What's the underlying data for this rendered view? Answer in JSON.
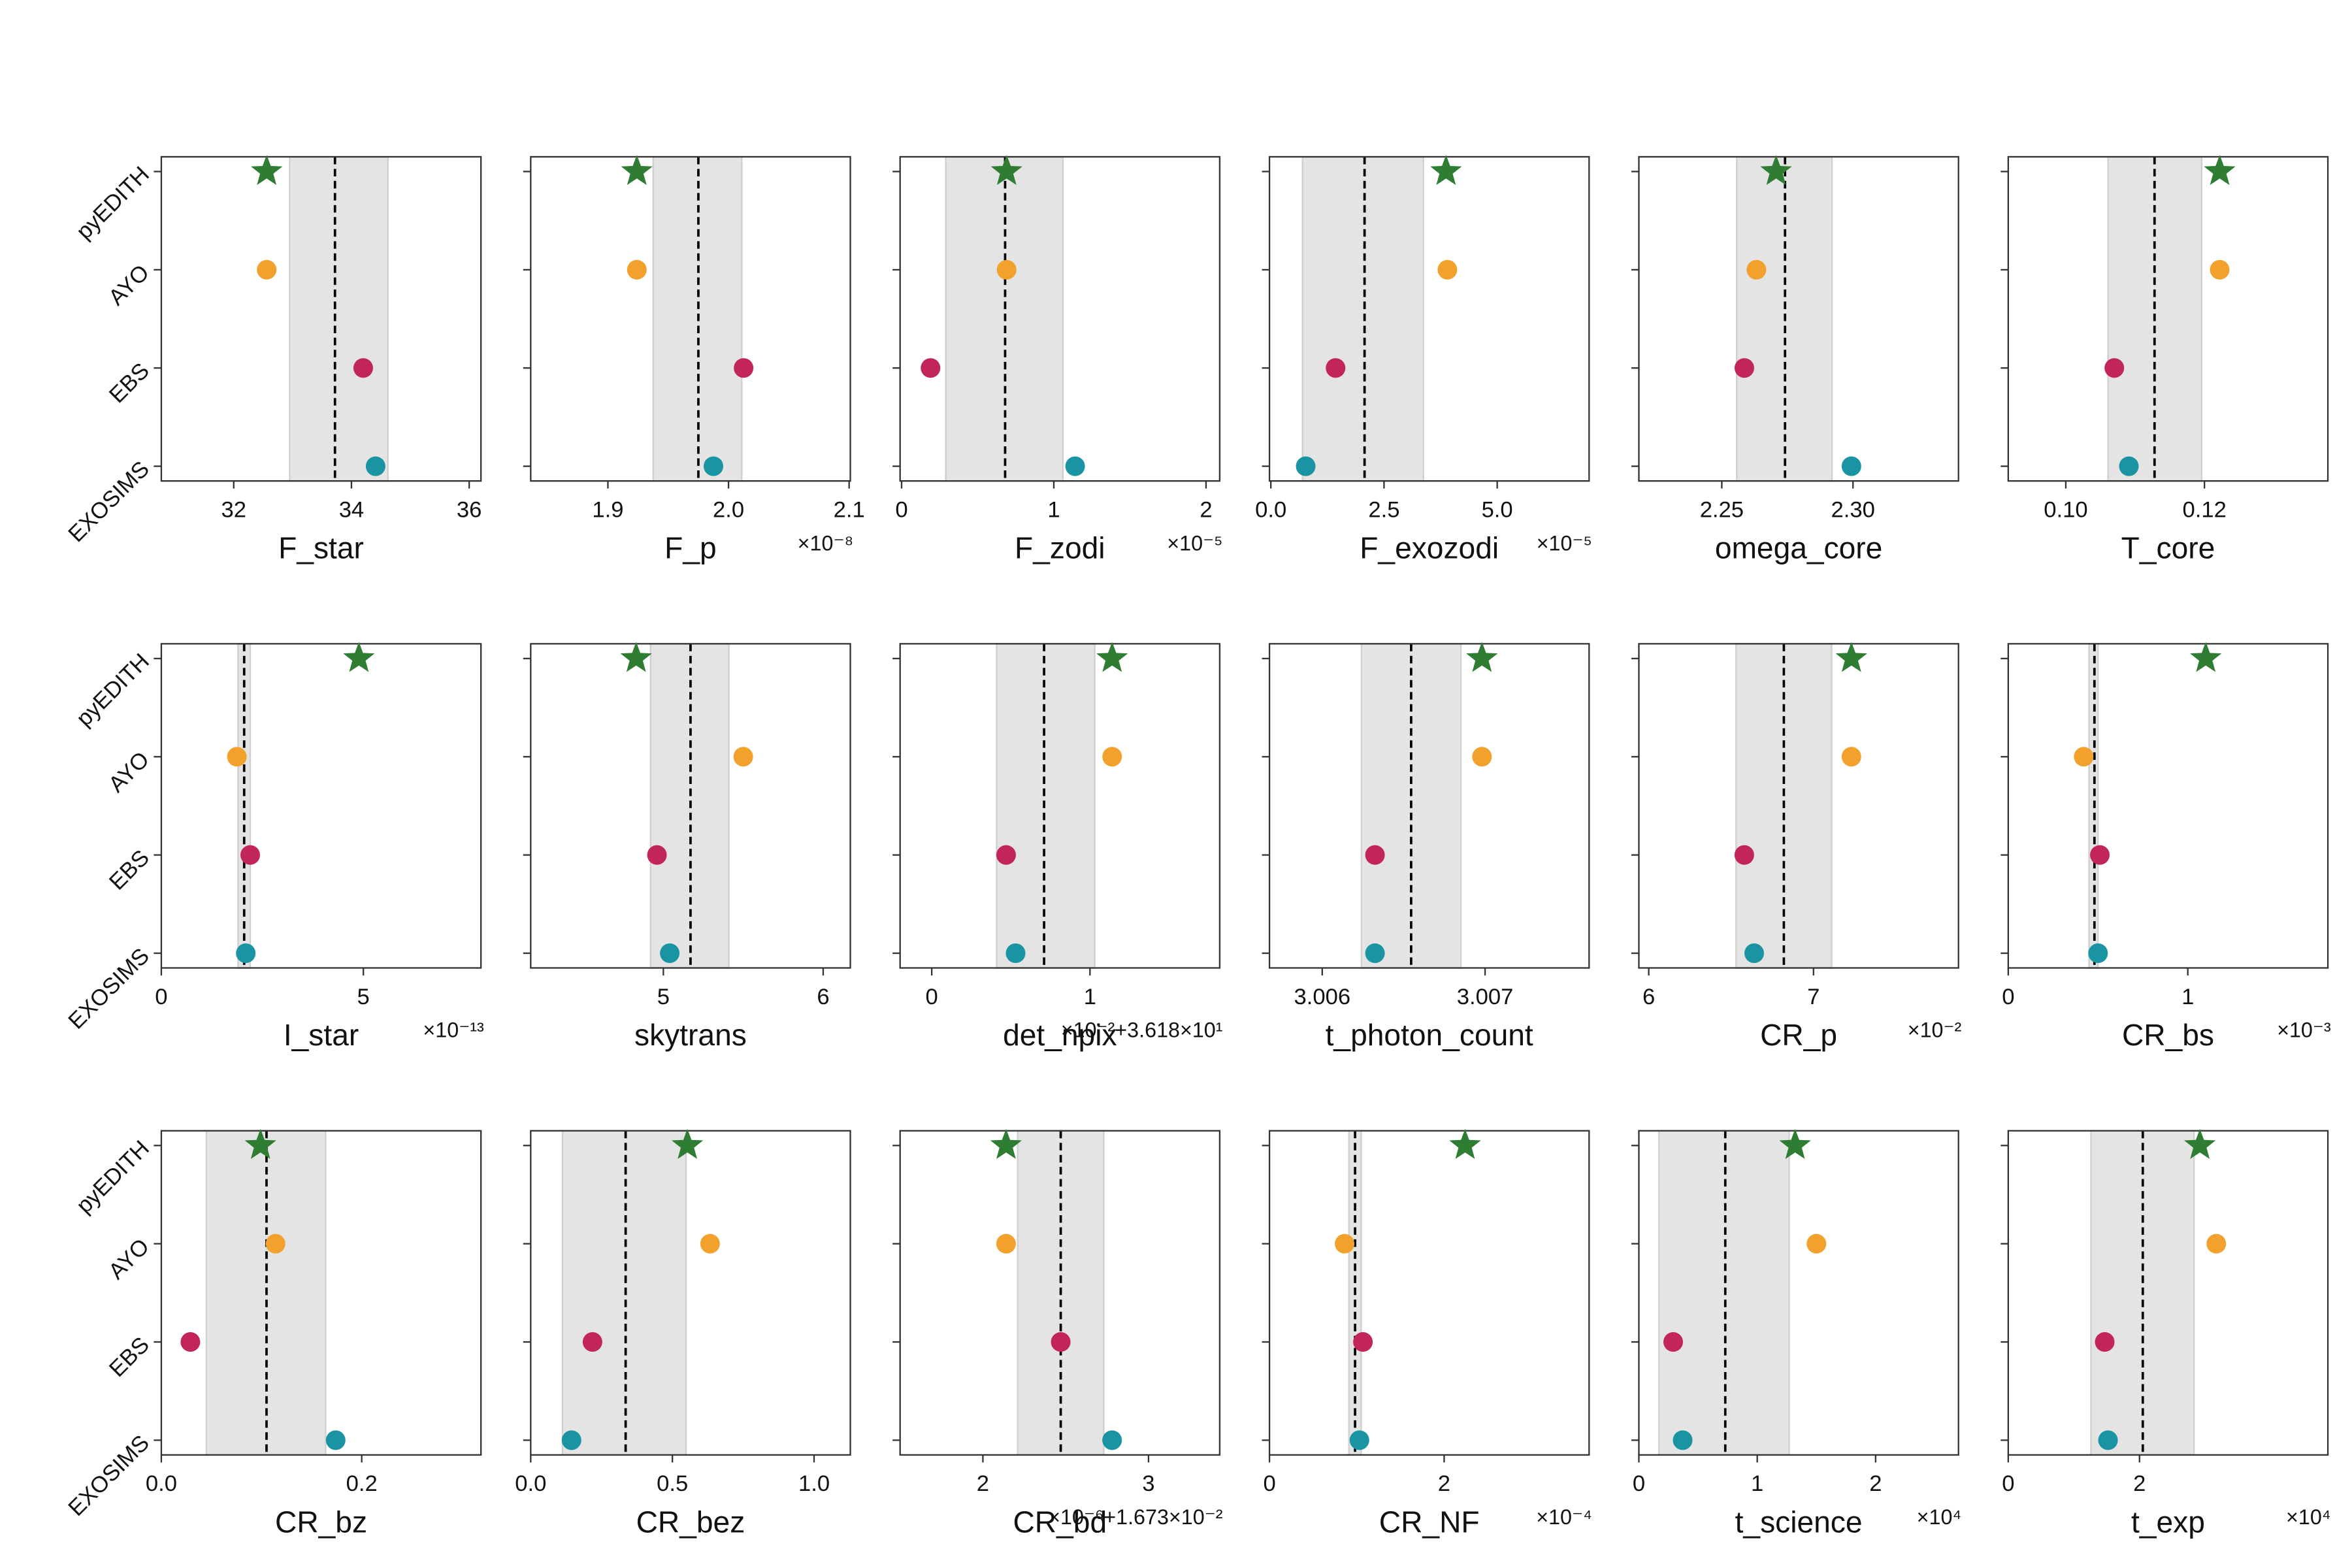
{
  "categories": [
    "EXOSIMS",
    "EBS",
    "AYO",
    "pyEDITH"
  ],
  "colors": [
    "#1a93a3",
    "#c2255c",
    "#f2a22c",
    "#2e7d32"
  ],
  "ylim": [
    -0.15,
    3.15
  ],
  "chart_data": [
    {
      "type": "dot",
      "xlabel": "F_star",
      "values": [
        34.41,
        34.2,
        32.56,
        32.56
      ],
      "mean": 33.72,
      "band": [
        32.95,
        34.62
      ],
      "xlim": [
        30.77,
        36.2
      ],
      "xticks": [
        32,
        34,
        36
      ]
    },
    {
      "type": "dot",
      "xlabel": "F_p",
      "values": [
        1.9875,
        2.0125,
        1.924,
        1.924
      ],
      "mean": 1.975,
      "band": [
        1.9375,
        2.011
      ],
      "xlim": [
        1.836,
        2.101
      ],
      "xticks": [
        1.9,
        {
          "value": 2,
          "label": "2.0"
        },
        2.1
      ],
      "offset": "×10⁻⁸"
    },
    {
      "type": "dot",
      "xlabel": "F_zodi",
      "values": [
        1.14,
        0.19,
        0.69,
        0.69
      ],
      "mean": 0.68,
      "band": [
        0.29,
        1.06
      ],
      "xlim": [
        -0.01,
        2.09
      ],
      "xticks": [
        0,
        1,
        2
      ],
      "offset": "×10⁻⁵"
    },
    {
      "type": "dot",
      "xlabel": "F_exozodi",
      "values": [
        0.77,
        1.43,
        3.9,
        3.87
      ],
      "mean": 2.07,
      "band": [
        0.7,
        3.37
      ],
      "xlim": [
        -0.03,
        7.03
      ],
      "xticks": [
        {
          "value": 0,
          "label": "0.0"
        },
        2.5,
        {
          "value": 5,
          "label": "5.0"
        }
      ],
      "offset": "×10⁻⁵"
    },
    {
      "type": "dot",
      "xlabel": "omega_core",
      "values": [
        2.2994,
        2.2586,
        2.2632,
        2.2707
      ],
      "mean": 2.2741,
      "band": [
        2.2557,
        2.292
      ],
      "xlim": [
        2.2184,
        2.3402
      ],
      "xticks": [
        2.25,
        {
          "value": 2.3,
          "label": "2.30"
        }
      ]
    },
    {
      "type": "dot",
      "xlabel": "T_core",
      "values": [
        0.1091,
        0.107,
        0.1222,
        0.1222
      ],
      "mean": 0.1128,
      "band": [
        0.1061,
        0.1196
      ],
      "xlim": [
        0.0917,
        0.1378
      ],
      "xticks": [
        {
          "value": 0.1,
          "label": "0.10"
        },
        0.12
      ]
    },
    {
      "type": "dot",
      "xlabel": "I_star",
      "values": [
        2.09,
        2.2,
        1.87,
        4.89
      ],
      "mean": 2.05,
      "band": [
        1.9,
        2.2
      ],
      "xlim": [
        0,
        7.91
      ],
      "xticks": [
        0,
        5
      ],
      "offset": "×10⁻¹³"
    },
    {
      "type": "dot",
      "xlabel": "skytrans",
      "values": [
        5.04,
        4.96,
        5.5,
        4.83
      ],
      "mean": 5.17,
      "band": [
        4.92,
        5.41
      ],
      "xlim": [
        4.17,
        6.17
      ],
      "xticks": [
        5,
        6
      ]
    },
    {
      "type": "dot",
      "xlabel": "det_npix",
      "values": [
        0.53,
        0.47,
        1.14,
        1.14
      ],
      "mean": 0.71,
      "band": [
        0.41,
        1.03
      ],
      "xlim": [
        -0.2,
        1.82
      ],
      "xticks": [
        0,
        1
      ],
      "offset": "×10⁻²+3.618×10¹"
    },
    {
      "type": "dot",
      "xlabel": "t_photon_count",
      "values": [
        3.006324,
        3.006324,
        3.006981,
        3.006981
      ],
      "mean": 3.006546,
      "band": [
        3.006241,
        3.006852
      ],
      "xlim": [
        3.005676,
        3.007639
      ],
      "xticks": [
        3.006,
        3.007
      ]
    },
    {
      "type": "dot",
      "xlabel": "CR_p",
      "values": [
        6.64,
        6.58,
        7.23,
        7.23
      ],
      "mean": 6.82,
      "band": [
        6.53,
        7.11
      ],
      "xlim": [
        5.94,
        7.88
      ],
      "xticks": [
        6,
        7
      ],
      "offset": "×10⁻²"
    },
    {
      "type": "dot",
      "xlabel": "CR_bs",
      "values": [
        0.5,
        0.51,
        0.42,
        1.1
      ],
      "mean": 0.48,
      "band": [
        0.45,
        0.5
      ],
      "xlim": [
        0,
        1.78
      ],
      "xticks": [
        0,
        1
      ],
      "offset": "×10⁻³"
    },
    {
      "type": "dot",
      "xlabel": "CR_bz",
      "values": [
        0.174,
        0.029,
        0.114,
        0.099
      ],
      "mean": 0.105,
      "band": [
        0.045,
        0.164
      ],
      "xlim": [
        0,
        0.319
      ],
      "xticks": [
        {
          "value": 0,
          "label": "0.0"
        },
        0.2
      ]
    },
    {
      "type": "dot",
      "xlabel": "CR_bez",
      "values": [
        0.144,
        0.218,
        0.633,
        0.553
      ],
      "mean": 0.335,
      "band": [
        0.112,
        0.548
      ],
      "xlim": [
        0,
        1.128
      ],
      "xticks": [
        {
          "value": 0,
          "label": "0.0"
        },
        0.5,
        {
          "value": 1,
          "label": "1.0"
        }
      ]
    },
    {
      "type": "dot",
      "xlabel": "CR_bd",
      "values": [
        2.78,
        2.47,
        2.14,
        2.14
      ],
      "mean": 2.47,
      "band": [
        2.21,
        2.73
      ],
      "xlim": [
        1.5,
        3.43
      ],
      "xticks": [
        2,
        3
      ],
      "offset": "×10⁻⁶+1.673×10⁻²"
    },
    {
      "type": "dot",
      "xlabel": "CR_NF",
      "values": [
        1.03,
        1.07,
        0.86,
        2.24
      ],
      "mean": 0.98,
      "band": [
        0.91,
        1.05
      ],
      "xlim": [
        0,
        3.66
      ],
      "xticks": [
        0,
        2
      ],
      "offset": "×10⁻⁴"
    },
    {
      "type": "dot",
      "xlabel": "t_science",
      "values": [
        0.37,
        0.29,
        1.5,
        1.32
      ],
      "mean": 0.73,
      "band": [
        0.17,
        1.27
      ],
      "xlim": [
        0,
        2.7
      ],
      "xticks": [
        0,
        1,
        2
      ],
      "offset": "×10⁴"
    },
    {
      "type": "dot",
      "xlabel": "t_exp",
      "values": [
        1.52,
        1.47,
        3.17,
        2.92
      ],
      "mean": 2.05,
      "band": [
        1.26,
        2.83
      ],
      "xlim": [
        0,
        4.87
      ],
      "xticks": [
        0,
        2
      ],
      "offset": "×10⁴"
    }
  ]
}
